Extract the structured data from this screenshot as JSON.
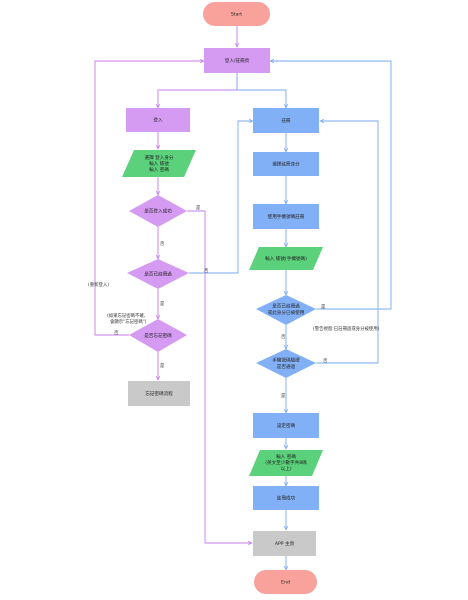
{
  "colors": {
    "terminal": "#f8a29b",
    "purple_node": "#d59af2",
    "purple_line": "#c57eea",
    "blue_node": "#82b0f7",
    "blue_line": "#7aa9f2",
    "green_node": "#5ad17a",
    "gray_node": "#c9c9c9"
  },
  "nodes": {
    "start": "Start",
    "login_register": "登入/註冊頁",
    "login": "登入",
    "login_input": [
      "選擇 登入身分",
      "輸入 帳號",
      "輸入 密碼"
    ],
    "login_success": "是否登入成功",
    "registered": "是否已註冊過",
    "forgot_pw": "是否忘記密碼",
    "forgot_flow": "忘記密碼流程",
    "register": "註冊",
    "choose_reg_identity": "選擇註冊身分",
    "phone_verify": "使用手機號碼註冊",
    "enter_phone": "輸入 帳號(手機號碼)",
    "dup_check": [
      "是否已註冊過",
      "或此身分已被使用"
    ],
    "sms_check": [
      "手機號碼驗證",
      "是否通過"
    ],
    "set_password": "設定密碼",
    "enter_password": [
      "輸入 密碼",
      "(英文至少數字共8碼",
      "以上)"
    ],
    "register_success": "註冊成功",
    "app_home": "APP 主頁",
    "end": "End"
  },
  "edges": {
    "yes": "是",
    "no": "否"
  },
  "notes": {
    "relogin": "(重新登入)",
    "forgot_hint": [
      "(如果忘記密碼不確,",
      "會顯示\"忘記密碼\")"
    ],
    "dup_hint": "(警告視窗:已註冊過或身分被使用)"
  }
}
